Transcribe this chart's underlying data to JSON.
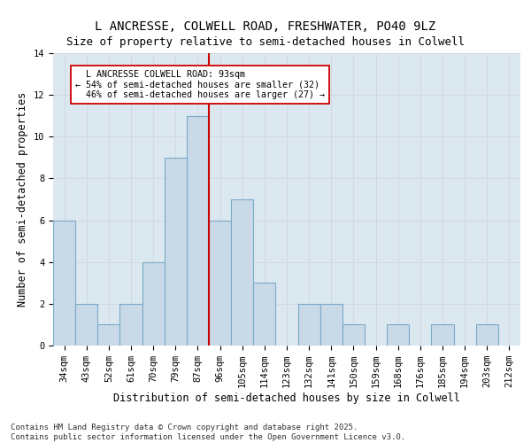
{
  "title": "L ANCRESSE, COLWELL ROAD, FRESHWATER, PO40 9LZ",
  "subtitle": "Size of property relative to semi-detached houses in Colwell",
  "xlabel": "Distribution of semi-detached houses by size in Colwell",
  "ylabel": "Number of semi-detached properties",
  "categories": [
    "34sqm",
    "43sqm",
    "52sqm",
    "61sqm",
    "70sqm",
    "79sqm",
    "87sqm",
    "96sqm",
    "105sqm",
    "114sqm",
    "123sqm",
    "132sqm",
    "141sqm",
    "150sqm",
    "159sqm",
    "168sqm",
    "176sqm",
    "185sqm",
    "194sqm",
    "203sqm",
    "212sqm"
  ],
  "values": [
    6,
    2,
    1,
    2,
    4,
    9,
    11,
    6,
    7,
    3,
    0,
    2,
    2,
    1,
    0,
    1,
    0,
    1,
    0,
    1,
    0
  ],
  "bar_color": "#c9d9e8",
  "bar_edgecolor": "#7aaac8",
  "subject_value": 93,
  "subject_label": "L ANCRESSE COLWELL ROAD: 93sqm",
  "pct_smaller": 54,
  "n_smaller": 32,
  "pct_larger": 46,
  "n_larger": 27,
  "vline_color": "#cc0000",
  "vline_x": 6.5,
  "annotation_box_edgecolor": "#cc0000",
  "grid_color": "#d0d8e4",
  "bg_color": "#dce8f0",
  "footer": "Contains HM Land Registry data © Crown copyright and database right 2025.\nContains public sector information licensed under the Open Government Licence v3.0.",
  "ylim": [
    0,
    14
  ],
  "yticks": [
    0,
    2,
    4,
    6,
    8,
    10,
    12,
    14
  ],
  "title_fontsize": 10,
  "axis_label_fontsize": 8.5,
  "tick_fontsize": 7.5,
  "footer_fontsize": 6.5
}
